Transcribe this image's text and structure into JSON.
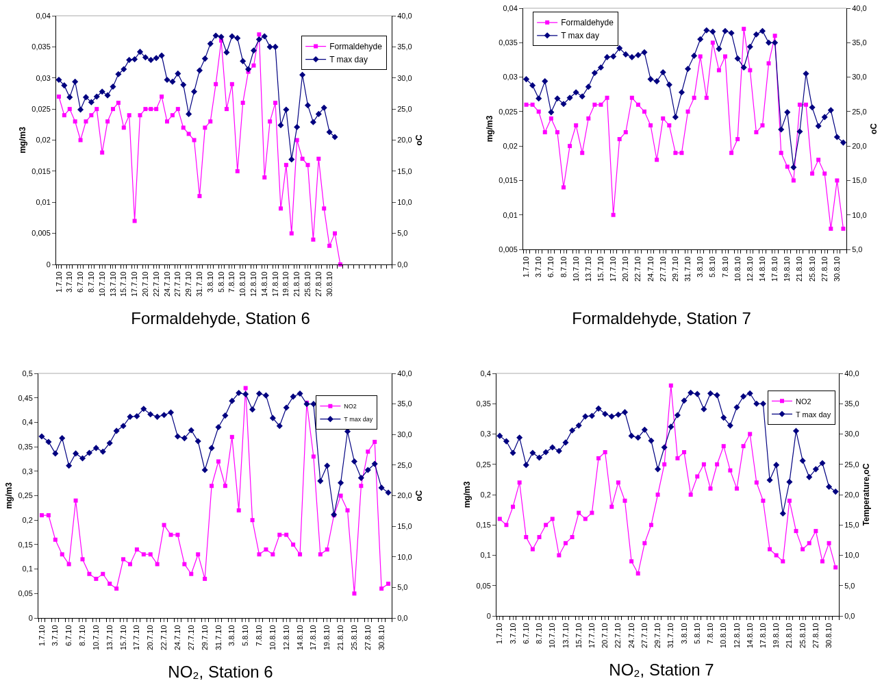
{
  "chart_data": [
    {
      "type": "line",
      "title": "Formaldehyde, Station 6",
      "ylabel": "mg/m3",
      "y2label": "oC",
      "legend": "top right",
      "categories": [
        "1.7.10",
        null,
        "3.7.10",
        null,
        "6.7.10",
        null,
        "8.7.10",
        null,
        "10.7.10",
        null,
        "13.7.10",
        null,
        "15.7.10",
        null,
        "17.7.10",
        null,
        "20.7.10",
        null,
        "22.7.10",
        null,
        "24.7.10",
        null,
        "27.7.10",
        null,
        "29.7.10",
        null,
        "31.7.10",
        null,
        "3.8.10",
        null,
        "5.8.10",
        null,
        "7.8.10",
        null,
        "10.8.10",
        null,
        "12.8.10",
        null,
        "14.8.10",
        null,
        "17.8.10",
        null,
        "19.8.10",
        null,
        "21.8.10",
        null,
        "25.8.10",
        null,
        "27.8.10",
        null,
        "30.8.10",
        null,
        null,
        null,
        null,
        null,
        null,
        null,
        null,
        null,
        null,
        null
      ],
      "ylim": [
        0,
        0.04
      ],
      "yticks": [
        {
          "value": 0,
          "label": "0"
        },
        {
          "value": 0.005,
          "label": "0,005"
        },
        {
          "value": 0.01,
          "label": "0,01"
        },
        {
          "value": 0.015,
          "label": "0,015"
        },
        {
          "value": 0.02,
          "label": "0,02"
        },
        {
          "value": 0.025,
          "label": "0,025"
        },
        {
          "value": 0.03,
          "label": "0,03"
        },
        {
          "value": 0.035,
          "label": "0,035"
        },
        {
          "value": 0.04,
          "label": "0,04"
        }
      ],
      "y2lim": [
        0,
        40
      ],
      "y2ticks": [
        {
          "value": 0,
          "label": "0,0"
        },
        {
          "value": 5,
          "label": "5,0"
        },
        {
          "value": 10,
          "label": "10,0"
        },
        {
          "value": 15,
          "label": "15,0"
        },
        {
          "value": 20,
          "label": "20,0"
        },
        {
          "value": 25,
          "label": "25,0"
        },
        {
          "value": 30,
          "label": "30,0"
        },
        {
          "value": 35,
          "label": "35,0"
        },
        {
          "value": 40,
          "label": "40,0"
        }
      ],
      "series": [
        {
          "name": "Formaldehyde",
          "color": "#ff00ff",
          "marker": "square",
          "values": [
            0.027,
            0.024,
            0.025,
            0.023,
            0.02,
            0.023,
            0.024,
            0.025,
            0.018,
            0.023,
            0.025,
            0.026,
            0.022,
            0.024,
            0.007,
            0.024,
            0.025,
            0.025,
            0.025,
            0.027,
            0.023,
            0.024,
            0.025,
            0.022,
            0.021,
            0.02,
            0.011,
            0.022,
            0.023,
            0.029,
            0.036,
            0.025,
            0.029,
            0.015,
            0.026,
            0.031,
            0.032,
            0.037,
            0.014,
            0.023,
            0.026,
            0.009,
            0.016,
            0.005,
            0.02,
            0.017,
            0.016,
            0.004,
            0.017,
            0.009,
            0.003,
            0.005,
            0,
            null,
            null,
            null,
            null,
            null,
            null,
            null,
            null,
            null
          ]
        },
        {
          "name": "T max day",
          "color": "#000080",
          "marker": "diamond",
          "axis": "y2",
          "values": [
            29.7,
            28.8,
            26.9,
            29.4,
            24.9,
            26.9,
            26.1,
            27.0,
            27.8,
            27.2,
            28.6,
            30.6,
            31.4,
            32.9,
            33.0,
            34.2,
            33.3,
            32.9,
            33.2,
            33.6,
            29.7,
            29.4,
            30.7,
            28.9,
            24.2,
            27.8,
            31.2,
            33.1,
            35.5,
            36.8,
            36.6,
            34.1,
            36.7,
            36.4,
            32.7,
            31.4,
            34.4,
            36.2,
            36.7,
            35.0,
            35.0,
            22.4,
            24.9,
            16.9,
            22.1,
            30.5,
            25.6,
            22.9,
            24.2,
            25.2,
            21.3,
            20.5,
            null,
            null,
            null,
            null,
            null,
            null,
            null,
            null,
            null,
            null
          ]
        }
      ]
    },
    {
      "type": "line",
      "title": "Formaldehyde, Station 7",
      "ylabel": "mg/m3",
      "y2label": "oC",
      "legend": "top left",
      "categories": [
        "1.7.10",
        null,
        "3.7.10",
        null,
        "6.7.10",
        null,
        "8.7.10",
        null,
        "10.7.10",
        null,
        "13.7.10",
        null,
        "15.7.10",
        null,
        "17.7.10",
        null,
        "20.7.10",
        null,
        "22.7.10",
        null,
        "24.7.10",
        null,
        "27.7.10",
        null,
        "29.7.10",
        null,
        "31.7.10",
        null,
        "3.8.10",
        null,
        "5.8.10",
        null,
        "7.8.10",
        null,
        "10.8.10",
        null,
        "12.8.10",
        null,
        "14.8.10",
        null,
        "17.8.10",
        null,
        "19.8.10",
        null,
        "21.8.10",
        null,
        "25.8.10",
        null,
        "27.8.10",
        null,
        "30.8.10",
        null
      ],
      "ylim": [
        0.005,
        0.04
      ],
      "yticks": [
        {
          "value": 0.005,
          "label": "0,005"
        },
        {
          "value": 0.01,
          "label": "0,01"
        },
        {
          "value": 0.015,
          "label": "0,015"
        },
        {
          "value": 0.02,
          "label": "0,02"
        },
        {
          "value": 0.025,
          "label": "0,025"
        },
        {
          "value": 0.03,
          "label": "0,03"
        },
        {
          "value": 0.035,
          "label": "0,035"
        },
        {
          "value": 0.04,
          "label": "0,04"
        }
      ],
      "y2lim": [
        5,
        40
      ],
      "y2ticks": [
        {
          "value": 5,
          "label": "5,0"
        },
        {
          "value": 10,
          "label": "10,0"
        },
        {
          "value": 15,
          "label": "15,0"
        },
        {
          "value": 20,
          "label": "20,0"
        },
        {
          "value": 25,
          "label": "25,0"
        },
        {
          "value": 30,
          "label": "30,0"
        },
        {
          "value": 35,
          "label": "35,0"
        },
        {
          "value": 40,
          "label": "40,0"
        }
      ],
      "series": [
        {
          "name": "Formaldehyde",
          "color": "#ff00ff",
          "marker": "square",
          "values": [
            0.026,
            0.026,
            0.025,
            0.022,
            0.024,
            0.022,
            0.014,
            0.02,
            0.023,
            0.019,
            0.024,
            0.026,
            0.026,
            0.027,
            0.01,
            0.021,
            0.022,
            0.027,
            0.026,
            0.025,
            0.023,
            0.018,
            0.024,
            0.023,
            0.019,
            0.019,
            0.025,
            0.027,
            0.033,
            0.027,
            0.035,
            0.031,
            0.033,
            0.019,
            0.021,
            0.037,
            0.031,
            0.022,
            0.023,
            0.032,
            0.036,
            0.019,
            0.017,
            0.015,
            0.026,
            0.026,
            0.016,
            0.018,
            0.016,
            0.008,
            0.015,
            0.008
          ]
        },
        {
          "name": "T max day",
          "color": "#000080",
          "marker": "diamond",
          "axis": "y2",
          "values": [
            29.7,
            28.8,
            26.9,
            29.4,
            24.9,
            26.9,
            26.1,
            27.0,
            27.8,
            27.2,
            28.6,
            30.6,
            31.4,
            32.9,
            33.0,
            34.2,
            33.3,
            32.9,
            33.2,
            33.6,
            29.7,
            29.4,
            30.7,
            28.9,
            24.2,
            27.8,
            31.2,
            33.1,
            35.5,
            36.8,
            36.6,
            34.1,
            36.7,
            36.4,
            32.7,
            31.4,
            34.4,
            36.2,
            36.7,
            35.0,
            35.0,
            22.4,
            24.9,
            16.9,
            22.1,
            30.5,
            25.6,
            22.9,
            24.2,
            25.2,
            21.3,
            20.5
          ]
        }
      ]
    },
    {
      "type": "line",
      "title": "NO₂, Station 6",
      "ylabel": "mg/m3",
      "y2label": "oC",
      "legend": "top right",
      "categories": [
        "1.7.10",
        null,
        "3.7.10",
        null,
        "6.7.10",
        null,
        "8.7.10",
        null,
        "10.7.10",
        null,
        "13.7.10",
        null,
        "15.7.10",
        null,
        "17.7.10",
        null,
        "20.7.10",
        null,
        "22.7.10",
        null,
        "24.7.10",
        null,
        "27.7.10",
        null,
        "29.7.10",
        null,
        "31.7.10",
        null,
        "3.8.10",
        null,
        "5.8.10",
        null,
        "7.8.10",
        null,
        "10.8.10",
        null,
        "12.8.10",
        null,
        "14.8.10",
        null,
        "17.8.10",
        null,
        "19.8.10",
        null,
        "21.8.10",
        null,
        "25.8.10",
        null,
        "27.8.10",
        null,
        "30.8.10",
        null
      ],
      "ylim": [
        0,
        0.5
      ],
      "yticks": [
        {
          "value": 0,
          "label": "0"
        },
        {
          "value": 0.05,
          "label": "0,05"
        },
        {
          "value": 0.1,
          "label": "0,1"
        },
        {
          "value": 0.15,
          "label": "0,15"
        },
        {
          "value": 0.2,
          "label": "0,2"
        },
        {
          "value": 0.25,
          "label": "0,25"
        },
        {
          "value": 0.3,
          "label": "0,3"
        },
        {
          "value": 0.35,
          "label": "0,35"
        },
        {
          "value": 0.4,
          "label": "0,4"
        },
        {
          "value": 0.45,
          "label": "0,45"
        },
        {
          "value": 0.5,
          "label": "0,5"
        }
      ],
      "y2lim": [
        0,
        40
      ],
      "y2ticks": [
        {
          "value": 0,
          "label": "0,0"
        },
        {
          "value": 5,
          "label": "5,0"
        },
        {
          "value": 10,
          "label": "10,0"
        },
        {
          "value": 15,
          "label": "15,0"
        },
        {
          "value": 20,
          "label": "20,0"
        },
        {
          "value": 25,
          "label": "25,0"
        },
        {
          "value": 30,
          "label": "30,0"
        },
        {
          "value": 35,
          "label": "35,0"
        },
        {
          "value": 40,
          "label": "40,0"
        }
      ],
      "series": [
        {
          "name": "NO2",
          "color": "#ff00ff",
          "marker": "square",
          "values": [
            0.21,
            0.21,
            0.16,
            0.13,
            0.11,
            0.24,
            0.12,
            0.09,
            0.08,
            0.09,
            0.07,
            0.06,
            0.12,
            0.11,
            0.14,
            0.13,
            0.13,
            0.11,
            0.19,
            0.17,
            0.17,
            0.11,
            0.09,
            0.13,
            0.08,
            0.27,
            0.32,
            0.27,
            0.37,
            0.22,
            0.47,
            0.2,
            0.13,
            0.14,
            0.13,
            0.17,
            0.17,
            0.15,
            0.13,
            0.44,
            0.33,
            0.13,
            0.14,
            0.21,
            0.25,
            0.22,
            0.05,
            0.27,
            0.34,
            0.36,
            0.06,
            0.07
          ]
        },
        {
          "name": "T max day",
          "color": "#000080",
          "marker": "diamond",
          "axis": "y2",
          "values": [
            29.7,
            28.8,
            26.9,
            29.4,
            24.9,
            26.9,
            26.1,
            27.0,
            27.8,
            27.2,
            28.6,
            30.6,
            31.4,
            32.9,
            33.0,
            34.2,
            33.3,
            32.9,
            33.2,
            33.6,
            29.7,
            29.4,
            30.7,
            28.9,
            24.2,
            27.8,
            31.2,
            33.1,
            35.5,
            36.8,
            36.6,
            34.1,
            36.7,
            36.4,
            32.7,
            31.4,
            34.4,
            36.2,
            36.7,
            35.0,
            35.0,
            22.4,
            24.9,
            16.9,
            22.1,
            30.5,
            25.6,
            22.9,
            24.2,
            25.2,
            21.3,
            20.5
          ]
        }
      ]
    },
    {
      "type": "line",
      "title": "NO₂, Station 7",
      "ylabel": "mg/m3",
      "y2label": "Temperature,oC",
      "legend": "top right",
      "categories": [
        "1.7.10",
        null,
        "3.7.10",
        null,
        "6.7.10",
        null,
        "8.7.10",
        null,
        "10.7.10",
        null,
        "13.7.10",
        null,
        "15.7.10",
        null,
        "17.7.10",
        null,
        "20.7.10",
        null,
        "22.7.10",
        null,
        "24.7.10",
        null,
        "27.7.10",
        null,
        "29.7.10",
        null,
        "31.7.10",
        null,
        "3.8.10",
        null,
        "5.8.10",
        null,
        "7.8.10",
        null,
        "10.8.10",
        null,
        "12.8.10",
        null,
        "14.8.10",
        null,
        "17.8.10",
        null,
        "19.8.10",
        null,
        "21.8.10",
        null,
        "25.8.10",
        null,
        "27.8.10",
        null,
        "30.8.10",
        null
      ],
      "ylim": [
        0,
        0.4
      ],
      "yticks": [
        {
          "value": 0,
          "label": "0"
        },
        {
          "value": 0.05,
          "label": "0,05"
        },
        {
          "value": 0.1,
          "label": "0,1"
        },
        {
          "value": 0.15,
          "label": "0,15"
        },
        {
          "value": 0.2,
          "label": "0,2"
        },
        {
          "value": 0.25,
          "label": "0,25"
        },
        {
          "value": 0.3,
          "label": "0,3"
        },
        {
          "value": 0.35,
          "label": "0,35"
        },
        {
          "value": 0.4,
          "label": "0,4"
        }
      ],
      "y2lim": [
        0,
        40
      ],
      "y2ticks": [
        {
          "value": 0,
          "label": "0,0"
        },
        {
          "value": 5,
          "label": "5,0"
        },
        {
          "value": 10,
          "label": "10,0"
        },
        {
          "value": 15,
          "label": "15,0"
        },
        {
          "value": 20,
          "label": "20,0"
        },
        {
          "value": 25,
          "label": "25,0"
        },
        {
          "value": 30,
          "label": "30,0"
        },
        {
          "value": 35,
          "label": "35,0"
        },
        {
          "value": 40,
          "label": "40,0"
        }
      ],
      "series": [
        {
          "name": "NO2",
          "color": "#ff00ff",
          "marker": "square",
          "values": [
            0.16,
            0.15,
            0.18,
            0.22,
            0.13,
            0.11,
            0.13,
            0.15,
            0.16,
            0.1,
            0.12,
            0.13,
            0.17,
            0.16,
            0.17,
            0.26,
            0.27,
            0.18,
            0.22,
            0.19,
            0.09,
            0.07,
            0.12,
            0.15,
            0.2,
            0.25,
            0.38,
            0.26,
            0.27,
            0.2,
            0.23,
            0.25,
            0.21,
            0.25,
            0.28,
            0.24,
            0.21,
            0.28,
            0.3,
            0.22,
            0.19,
            0.11,
            0.1,
            0.09,
            0.19,
            0.14,
            0.11,
            0.12,
            0.14,
            0.09,
            0.12,
            0.08
          ]
        },
        {
          "name": "T max day",
          "color": "#000080",
          "marker": "diamond",
          "axis": "y2",
          "values": [
            29.7,
            28.8,
            26.9,
            29.4,
            24.9,
            26.9,
            26.1,
            27.0,
            27.8,
            27.2,
            28.6,
            30.6,
            31.4,
            32.9,
            33.0,
            34.2,
            33.3,
            32.9,
            33.2,
            33.6,
            29.7,
            29.4,
            30.7,
            28.9,
            24.2,
            27.8,
            31.2,
            33.1,
            35.5,
            36.8,
            36.6,
            34.1,
            36.7,
            36.4,
            32.7,
            31.4,
            34.4,
            36.2,
            36.7,
            35.0,
            35.0,
            22.4,
            24.9,
            16.9,
            22.1,
            30.5,
            25.6,
            22.9,
            24.2,
            25.2,
            21.3,
            20.5
          ]
        }
      ]
    }
  ]
}
